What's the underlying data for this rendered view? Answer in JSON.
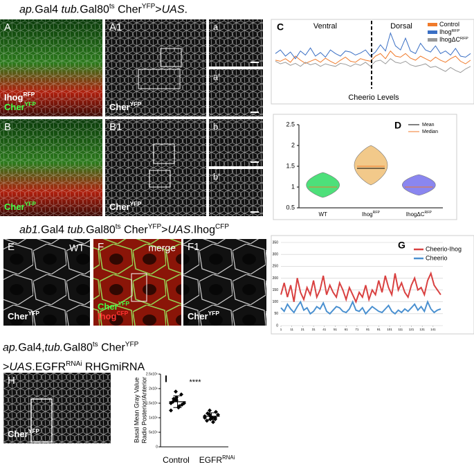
{
  "headings": [
    [
      "ap.",
      "Gal4 ",
      "tub.",
      "Gal80",
      "ts",
      " Cher",
      "YFP",
      ">",
      "UAS",
      "."
    ],
    [
      "ab1.",
      "Gal4 ",
      "tub.",
      "Gal80",
      "ts",
      " Cher",
      "YFP",
      ">",
      "UAS",
      ".Ihog",
      "CFP"
    ],
    [
      "ap.",
      "Gal4,",
      "tub.",
      "Gal80",
      "ts",
      " Cher",
      "YFP",
      ">",
      "UAS",
      ".EGFR",
      "RNAi",
      " RHGmiRNA"
    ]
  ],
  "panels": [
    {
      "letter": "A",
      "labels": [
        {
          "text": "Ihog",
          "sup": "RFP"
        },
        {
          "text": "Cher",
          "sup": "YFP"
        }
      ]
    },
    {
      "letter": "A1",
      "labels": [
        {
          "text": "Cher",
          "sup": "YFP"
        }
      ]
    },
    {
      "letter": "a"
    },
    {
      "letter": "a'"
    },
    {
      "letter": "B",
      "labels": [
        {
          "text": "Cher",
          "sup": "YFP"
        }
      ]
    },
    {
      "letter": "B1",
      "labels": [
        {
          "text": "Cher",
          "sup": "YFP"
        }
      ]
    },
    {
      "letter": "b"
    },
    {
      "letter": "b'"
    },
    {
      "letter": "E",
      "tag": "WT",
      "labels": [
        {
          "text": "Cher",
          "sup": "YFP"
        }
      ]
    },
    {
      "letter": "F",
      "tag": "merge",
      "labels": [
        {
          "text": "Cher",
          "sup": "YFP"
        },
        {
          "text": "Ihog",
          "sup": "CFP"
        }
      ]
    },
    {
      "letter": "F1",
      "labels": [
        {
          "text": "Cher",
          "sup": "YFP"
        }
      ]
    },
    {
      "letter": "H",
      "labels": [
        {
          "text": "Cher",
          "sup": "YFP"
        }
      ]
    }
  ],
  "chart_data": [
    {
      "type": "line",
      "panel": "C",
      "xlabel": "Cheerio Levels",
      "annotations": [
        "Ventral",
        "Dorsal"
      ],
      "ylim": [
        0,
        1
      ],
      "series": [
        {
          "name": "Control",
          "color": "#f07a2a",
          "values": [
            0.42,
            0.4,
            0.45,
            0.38,
            0.5,
            0.42,
            0.36,
            0.4,
            0.44,
            0.38,
            0.46,
            0.4,
            0.35,
            0.42,
            0.48,
            0.4,
            0.38,
            0.45,
            0.42,
            0.4,
            0.5,
            0.55,
            0.45,
            0.6,
            0.5,
            0.48,
            0.55,
            0.46,
            0.42,
            0.5,
            0.45,
            0.4,
            0.48,
            0.42,
            0.38,
            0.45,
            0.5,
            0.4,
            0.35,
            0.42
          ]
        },
        {
          "name": "Ihog",
          "name_sup": "RFP",
          "color": "#3a6fc4",
          "values": [
            0.55,
            0.62,
            0.5,
            0.58,
            0.45,
            0.6,
            0.52,
            0.66,
            0.5,
            0.57,
            0.48,
            0.62,
            0.55,
            0.5,
            0.6,
            0.58,
            0.52,
            0.56,
            0.62,
            0.5,
            0.58,
            0.72,
            0.6,
            0.95,
            0.7,
            0.62,
            0.85,
            0.6,
            0.55,
            0.75,
            0.62,
            0.58,
            0.7,
            0.55,
            0.6,
            0.52,
            0.65,
            0.5,
            0.48,
            0.55
          ]
        },
        {
          "name": "IhogΔC",
          "name_sup": "RFP",
          "color": "#999999",
          "values": [
            0.4,
            0.35,
            0.38,
            0.32,
            0.36,
            0.3,
            0.38,
            0.33,
            0.36,
            0.3,
            0.35,
            0.32,
            0.3,
            0.36,
            0.34,
            0.3,
            0.35,
            0.32,
            0.38,
            0.3,
            0.4,
            0.42,
            0.35,
            0.45,
            0.38,
            0.36,
            0.4,
            0.33,
            0.3,
            0.32,
            0.35,
            0.28,
            0.3,
            0.25,
            0.2,
            0.28,
            0.22,
            0.18,
            0.25,
            0.3
          ]
        }
      ]
    },
    {
      "type": "violin",
      "panel": "D",
      "categories": [
        "WT",
        "Ihog",
        "IhogΔC"
      ],
      "category_sups": [
        null,
        "RFP",
        "RFP"
      ],
      "ylim": [
        0.5,
        2.5
      ],
      "yticks": [
        0.5,
        1,
        1.5,
        2,
        2.5
      ],
      "colors": [
        "#4de07a",
        "#f2c98a",
        "#8a86f0"
      ],
      "mean": [
        1,
        1.45,
        1
      ],
      "median": [
        1,
        1.5,
        1
      ],
      "min": [
        0.75,
        1.05,
        0.8
      ],
      "max": [
        1.35,
        2.0,
        1.3
      ],
      "legend": [
        {
          "name": "Mean",
          "color": "#000000"
        },
        {
          "name": "Median",
          "color": "#f07a2a"
        }
      ]
    },
    {
      "type": "line",
      "panel": "G",
      "xlim": [
        1,
        150
      ],
      "xticks": [
        1,
        11,
        21,
        31,
        41,
        51,
        61,
        71,
        81,
        91,
        101,
        111,
        121,
        131,
        141
      ],
      "ylim": [
        0,
        350
      ],
      "yticks": [
        0,
        50,
        100,
        150,
        200,
        250,
        300,
        350
      ],
      "grid": true,
      "x": [
        1,
        4,
        7,
        10,
        13,
        16,
        19,
        22,
        25,
        28,
        31,
        34,
        37,
        40,
        43,
        46,
        49,
        52,
        55,
        58,
        61,
        64,
        67,
        70,
        73,
        76,
        79,
        82,
        85,
        88,
        91,
        94,
        97,
        100,
        103,
        106,
        109,
        112,
        115,
        118,
        121,
        124,
        127,
        130,
        133,
        136,
        139,
        142,
        145,
        148
      ],
      "series": [
        {
          "name": "Cheerio-Ihog",
          "color": "#d94040",
          "values": [
            130,
            180,
            120,
            170,
            100,
            200,
            140,
            110,
            160,
            130,
            190,
            120,
            150,
            210,
            130,
            170,
            140,
            120,
            180,
            150,
            110,
            160,
            130,
            100,
            140,
            120,
            170,
            110,
            150,
            130,
            190,
            140,
            210,
            160,
            130,
            220,
            150,
            180,
            140,
            120,
            170,
            200,
            150,
            160,
            130,
            190,
            220,
            170,
            150,
            130
          ]
        },
        {
          "name": "Cheerio",
          "color": "#4a90d0",
          "values": [
            75,
            60,
            90,
            70,
            55,
            80,
            100,
            65,
            75,
            50,
            60,
            80,
            70,
            95,
            60,
            50,
            65,
            80,
            75,
            60,
            55,
            70,
            100,
            65,
            60,
            75,
            50,
            65,
            80,
            70,
            60,
            55,
            70,
            85,
            60,
            50,
            65,
            55,
            70,
            60,
            75,
            90,
            65,
            80,
            60,
            100,
            70,
            55,
            65,
            70
          ]
        }
      ]
    },
    {
      "type": "strip",
      "panel": "I",
      "title": "****",
      "ylabel": [
        "Basal Mean Gray Value",
        "Radio Posterior/Anterior"
      ],
      "categories": [
        "Control",
        "EGFR"
      ],
      "category_sups": [
        null,
        "RNAi"
      ],
      "ylim": [
        0,
        2500000
      ],
      "yticks": [
        0,
        {
          "value": 500000,
          "label": "5x10⁵"
        },
        {
          "value": 1000000,
          "label": "1x10⁶"
        },
        {
          "value": 1500000,
          "label": "1.5x10⁶"
        },
        {
          "value": 2000000,
          "label": "2x10⁶"
        },
        {
          "value": 2500000,
          "label": "2.5x10⁶"
        }
      ],
      "series": [
        {
          "values": [
            1500000,
            1600000,
            1700000,
            1800000,
            1450000,
            1550000,
            1650000,
            1350000,
            1400000,
            1500000,
            1250000,
            1900000,
            1600000
          ]
        },
        {
          "values": [
            1000000,
            1100000,
            1050000,
            950000,
            1200000,
            900000,
            1150000,
            1000000,
            850000,
            1100000,
            1050000,
            1250000,
            950000,
            1000000
          ]
        }
      ],
      "mean": [
        1550000,
        1050000
      ],
      "sd": [
        200000,
        120000
      ]
    }
  ]
}
